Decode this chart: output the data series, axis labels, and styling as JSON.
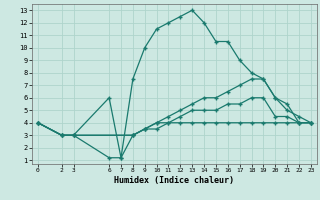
{
  "xlabel": "Humidex (Indice chaleur)",
  "bg_color": "#cde8e2",
  "grid_color": "#afd4cc",
  "line_color": "#1a7a6e",
  "xlim": [
    -0.5,
    23.5
  ],
  "ylim": [
    0.7,
    13.5
  ],
  "xticks": [
    0,
    2,
    3,
    6,
    7,
    8,
    9,
    10,
    11,
    12,
    13,
    14,
    15,
    16,
    17,
    18,
    19,
    20,
    21,
    22,
    23
  ],
  "yticks": [
    1,
    2,
    3,
    4,
    5,
    6,
    7,
    8,
    9,
    10,
    11,
    12,
    13
  ],
  "lines": [
    {
      "x": [
        0,
        2,
        3,
        6,
        7,
        8,
        9,
        10,
        11,
        12,
        13,
        14,
        15,
        16,
        17,
        18,
        19,
        20,
        21,
        22,
        23
      ],
      "y": [
        4,
        3,
        3,
        6,
        1.2,
        7.5,
        10,
        11.5,
        12,
        12.5,
        13,
        12,
        10.5,
        10.5,
        9,
        8,
        7.5,
        6,
        5,
        4.5,
        4
      ]
    },
    {
      "x": [
        0,
        2,
        3,
        8,
        9,
        10,
        11,
        12,
        13,
        14,
        15,
        16,
        17,
        18,
        19,
        20,
        21,
        22,
        23
      ],
      "y": [
        4,
        3,
        3,
        3,
        3.5,
        4,
        4.5,
        5,
        5.5,
        6,
        6,
        6.5,
        7,
        7.5,
        7.5,
        6,
        5.5,
        4,
        4
      ]
    },
    {
      "x": [
        0,
        2,
        3,
        8,
        9,
        10,
        11,
        12,
        13,
        14,
        15,
        16,
        17,
        18,
        19,
        20,
        21,
        22,
        23
      ],
      "y": [
        4,
        3,
        3,
        3,
        3.5,
        4,
        4,
        4.5,
        5,
        5,
        5,
        5.5,
        5.5,
        6,
        6,
        4.5,
        4.5,
        4,
        4
      ]
    },
    {
      "x": [
        0,
        2,
        3,
        6,
        7,
        8,
        9,
        10,
        11,
        12,
        13,
        14,
        15,
        16,
        17,
        18,
        19,
        20,
        21,
        22,
        23
      ],
      "y": [
        4,
        3,
        3,
        1.2,
        1.2,
        3,
        3.5,
        3.5,
        4,
        4,
        4,
        4,
        4,
        4,
        4,
        4,
        4,
        4,
        4,
        4,
        4
      ]
    }
  ]
}
